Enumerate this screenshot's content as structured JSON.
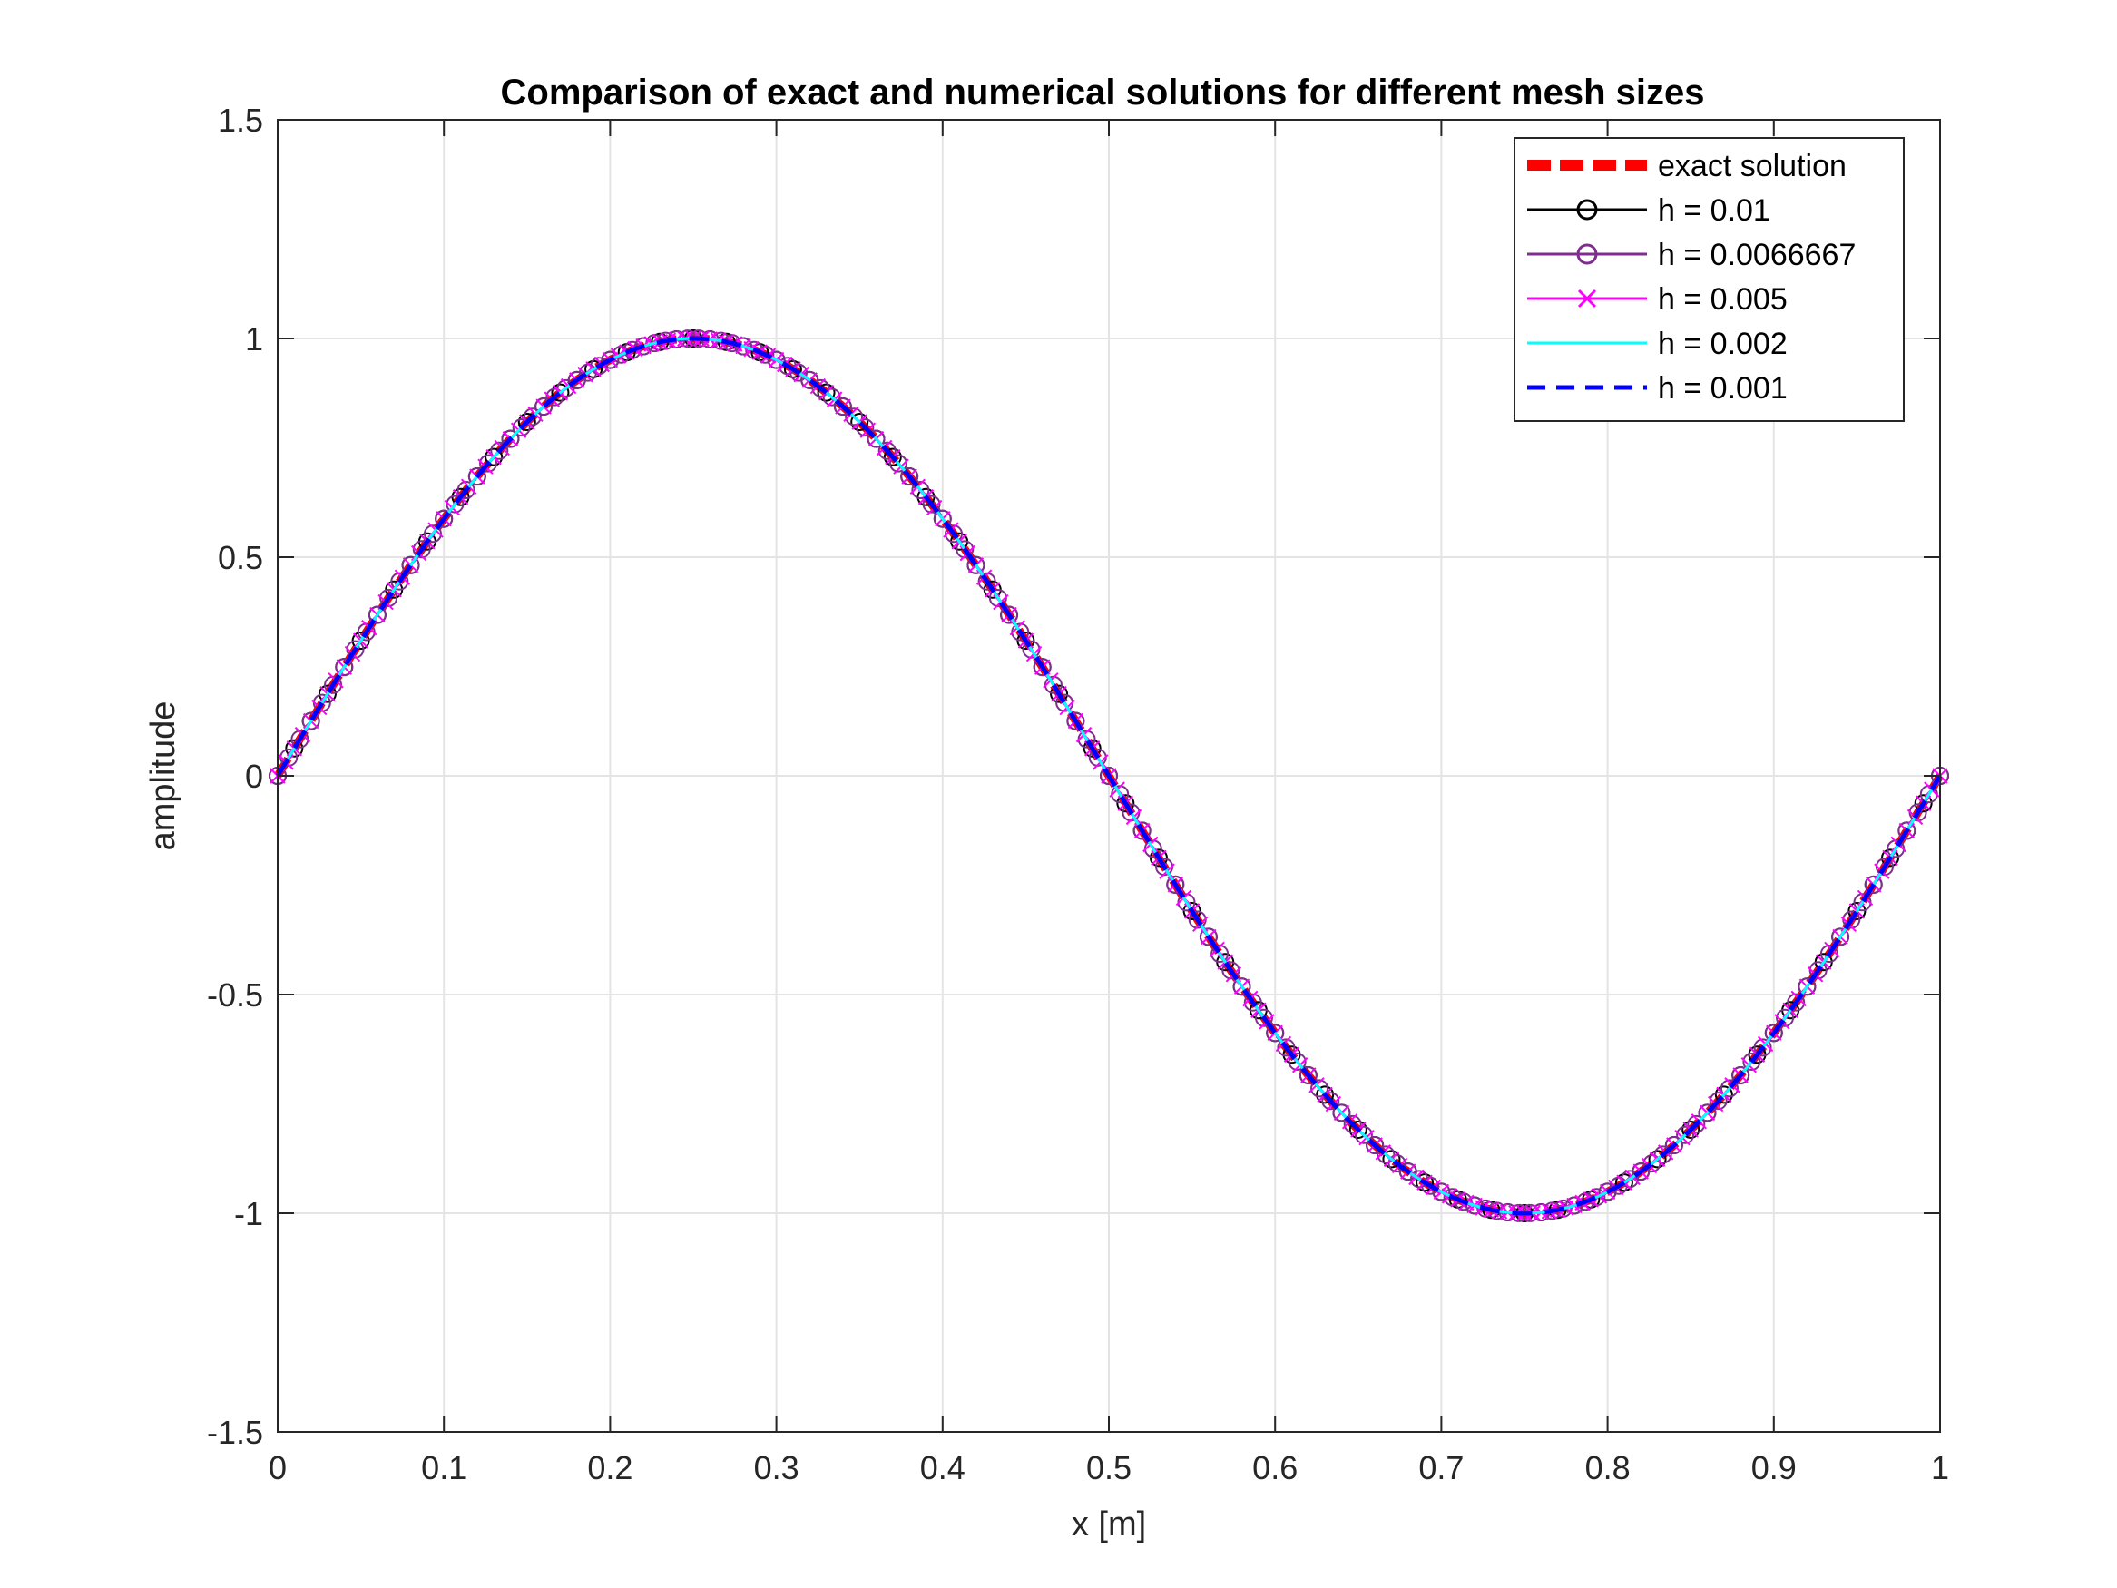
{
  "chart_data": {
    "type": "line",
    "title": "Comparison of exact and numerical solutions for different mesh sizes",
    "xlabel": "x [m]",
    "ylabel": "amplitude",
    "xlim": [
      0,
      1
    ],
    "ylim": [
      -1.5,
      1.5
    ],
    "xticks": [
      0,
      0.1,
      0.2,
      0.3,
      0.4,
      0.5,
      0.6,
      0.7,
      0.8,
      0.9,
      1
    ],
    "xtick_labels": [
      "0",
      "0.1",
      "0.2",
      "0.3",
      "0.4",
      "0.5",
      "0.6",
      "0.7",
      "0.8",
      "0.9",
      "1"
    ],
    "yticks": [
      -1.5,
      -1,
      -0.5,
      0,
      0.5,
      1,
      1.5
    ],
    "ytick_labels": [
      "-1.5",
      "-1",
      "-0.5",
      "0",
      "0.5",
      "1",
      "1.5"
    ],
    "grid": true,
    "legend_position": "top-right",
    "function": "sin(2*pi*x)",
    "series": [
      {
        "name": "exact solution",
        "color": "#ff0000",
        "style": "dashed",
        "marker": "none",
        "step": 0.001
      },
      {
        "name": "h =  0.01",
        "color": "#000000",
        "style": "solid",
        "marker": "circle",
        "step": 0.01
      },
      {
        "name": "h =  0.0066667",
        "color": "#7e2f8e",
        "style": "solid",
        "marker": "circle",
        "step": 0.0066667
      },
      {
        "name": "h =  0.005",
        "color": "#ff00ff",
        "style": "solid",
        "marker": "x",
        "step": 0.005
      },
      {
        "name": "h =  0.002",
        "color": "#00ffff",
        "style": "solid",
        "marker": "none",
        "step": 0.002
      },
      {
        "name": "h =  0.001",
        "color": "#0000ff",
        "style": "dashed",
        "marker": "none",
        "step": 0.001
      }
    ]
  }
}
